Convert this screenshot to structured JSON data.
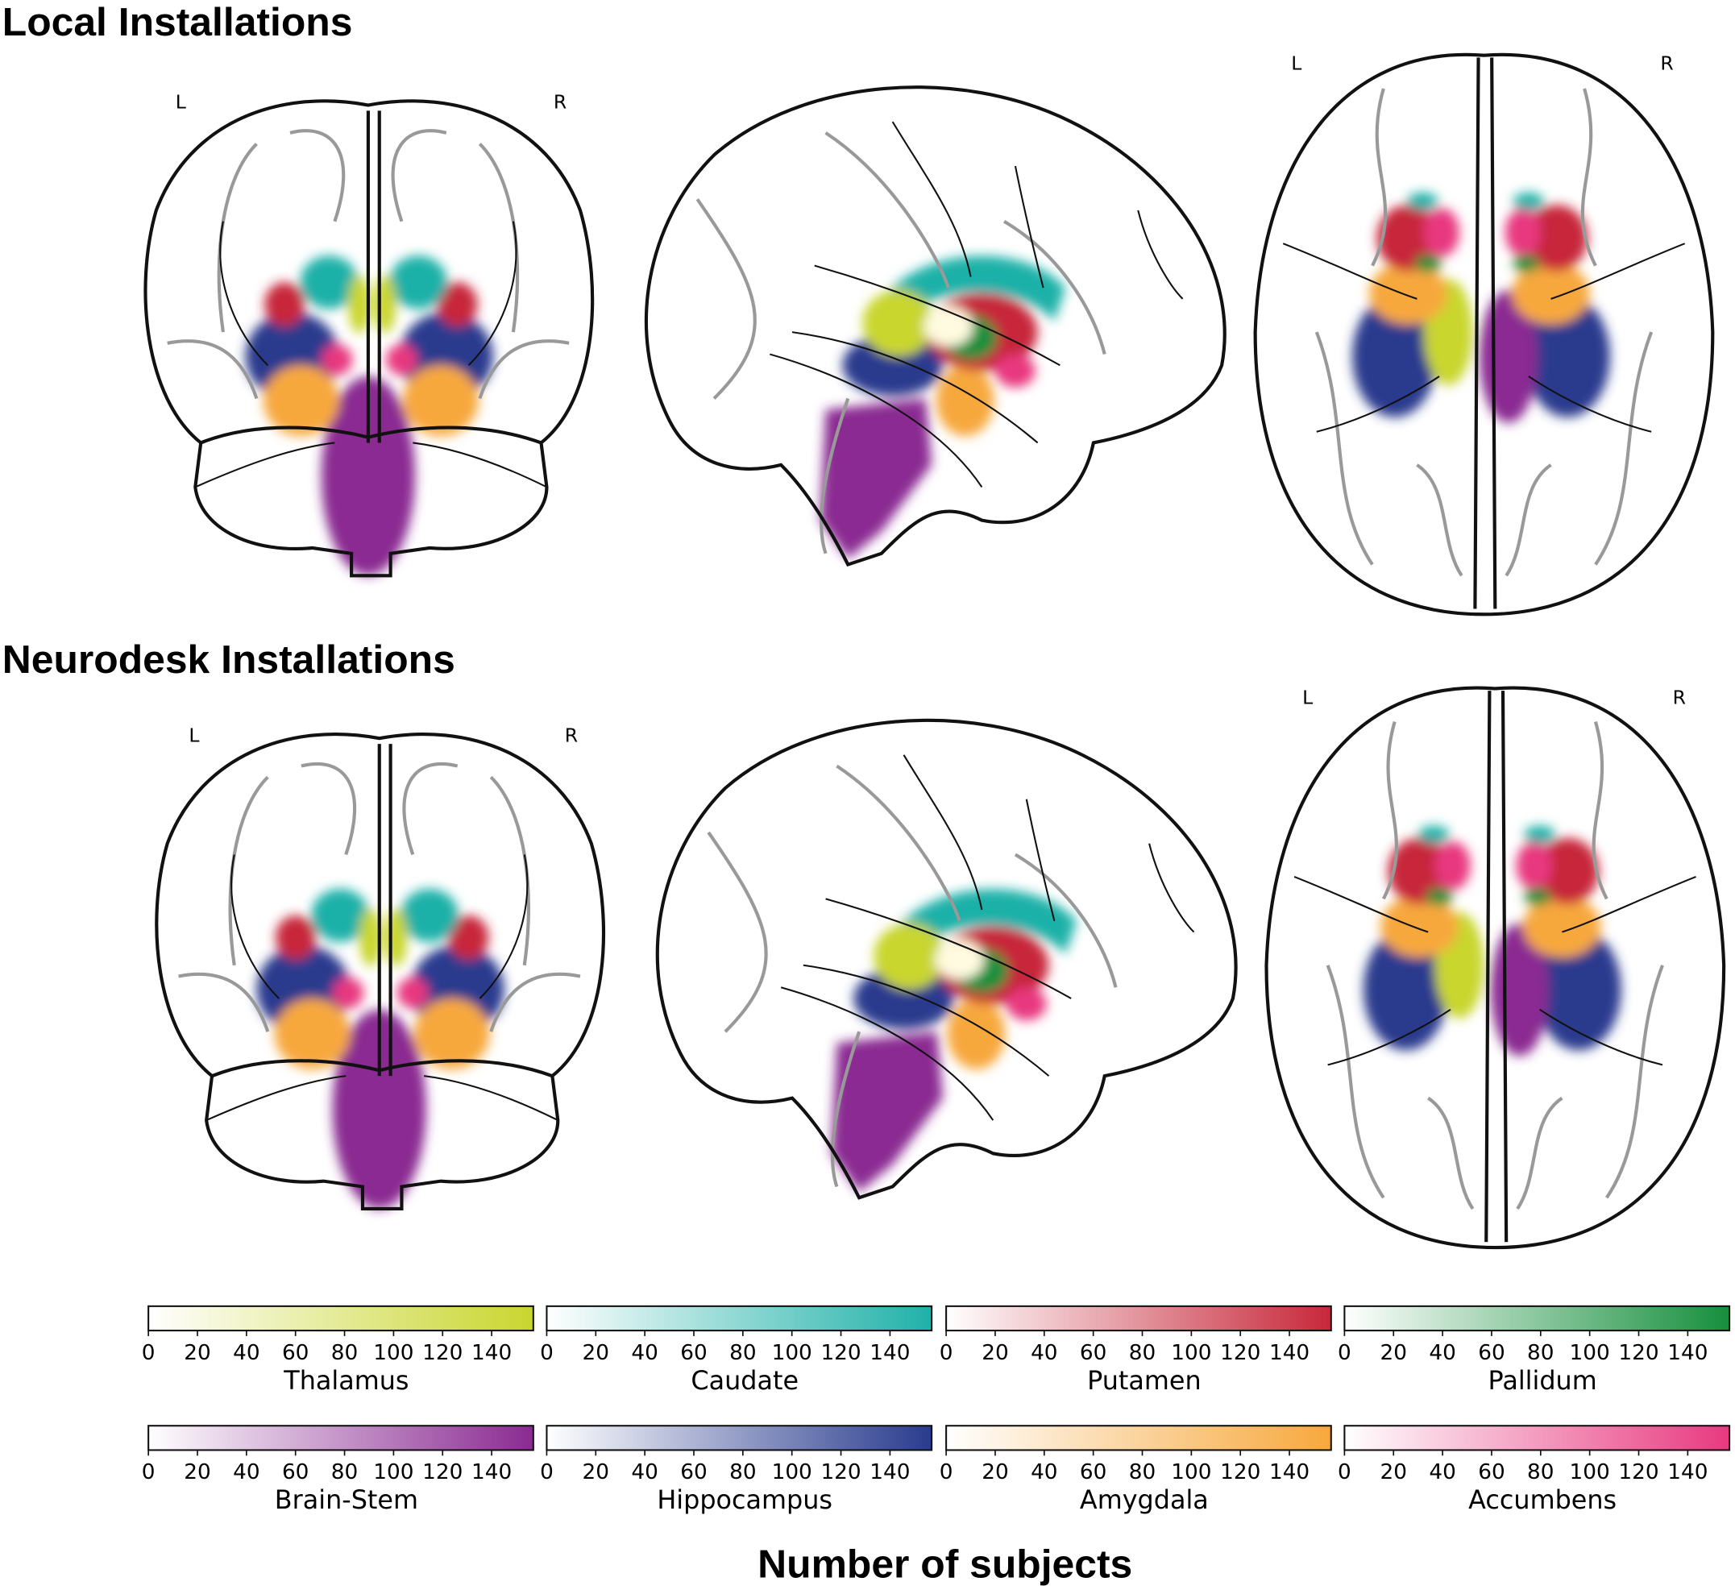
{
  "panels": [
    {
      "title": "Local Installations",
      "labels": [
        "L",
        "R",
        "L",
        "R"
      ]
    },
    {
      "title": "Neurodesk Installations",
      "labels": [
        "L",
        "R",
        "L",
        "R"
      ]
    }
  ],
  "colorbars": [
    {
      "name": "Thalamus",
      "color": "#c9d62e",
      "lim": [
        0,
        157
      ],
      "ticks": [
        0,
        20,
        40,
        60,
        80,
        100,
        120,
        140
      ]
    },
    {
      "name": "Caudate",
      "color": "#1fb1a8",
      "lim": [
        0,
        157
      ],
      "ticks": [
        0,
        20,
        40,
        60,
        80,
        100,
        120,
        140
      ]
    },
    {
      "name": "Putamen",
      "color": "#c7283a",
      "lim": [
        0,
        157
      ],
      "ticks": [
        0,
        20,
        40,
        60,
        80,
        100,
        120,
        140
      ]
    },
    {
      "name": "Pallidum",
      "color": "#168f3d",
      "lim": [
        0,
        157
      ],
      "ticks": [
        0,
        20,
        40,
        60,
        80,
        100,
        120,
        140
      ]
    },
    {
      "name": "Brain-Stem",
      "color": "#8a2a92",
      "lim": [
        0,
        157
      ],
      "ticks": [
        0,
        20,
        40,
        60,
        80,
        100,
        120,
        140
      ]
    },
    {
      "name": "Hippocampus",
      "color": "#293b8e",
      "lim": [
        0,
        157
      ],
      "ticks": [
        0,
        20,
        40,
        60,
        80,
        100,
        120,
        140
      ]
    },
    {
      "name": "Amygdala",
      "color": "#f7a83c",
      "lim": [
        0,
        157
      ],
      "ticks": [
        0,
        20,
        40,
        60,
        80,
        100,
        120,
        140
      ]
    },
    {
      "name": "Accumbens",
      "color": "#e8397f",
      "lim": [
        0,
        157
      ],
      "ticks": [
        0,
        20,
        40,
        60,
        80,
        100,
        120,
        140
      ]
    }
  ],
  "xlabel": "Number of subjects"
}
